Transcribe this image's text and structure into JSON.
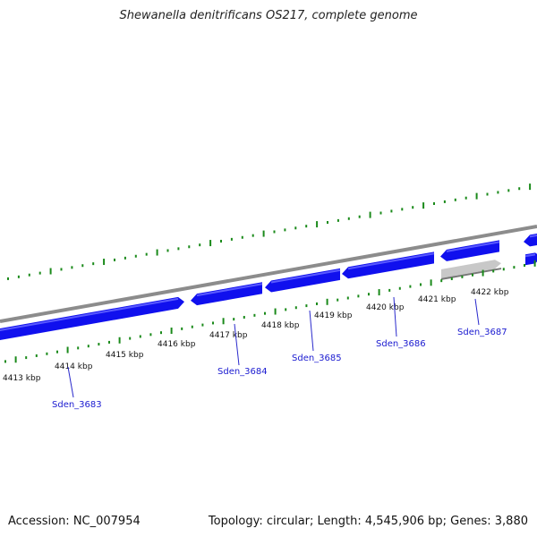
{
  "title": "Shewanella denitrificans OS217, complete genome",
  "footer": {
    "accession": "Accession: NC_007954",
    "summary": "Topology: circular; Length: 4,545,906 bp; Genes: 3,880"
  },
  "colors": {
    "gene_fill": "#1010ee",
    "gene_highlight": "#5a5aff",
    "rna_fill": "#c8c8c8",
    "backbone": "#8c8c8c",
    "tick": "#1a8a1a",
    "label_line": "#2a2acc"
  },
  "kbp_labels": [
    "4413 kbp",
    "4414 kbp",
    "4415 kbp",
    "4416 kbp",
    "4417 kbp",
    "4418 kbp",
    "4419 kbp",
    "4420 kbp",
    "4421 kbp",
    "4422 kbp"
  ],
  "gene_labels": [
    "Sden_3683",
    "Sden_3684",
    "Sden_3685",
    "Sden_3686",
    "Sden_3687"
  ]
}
